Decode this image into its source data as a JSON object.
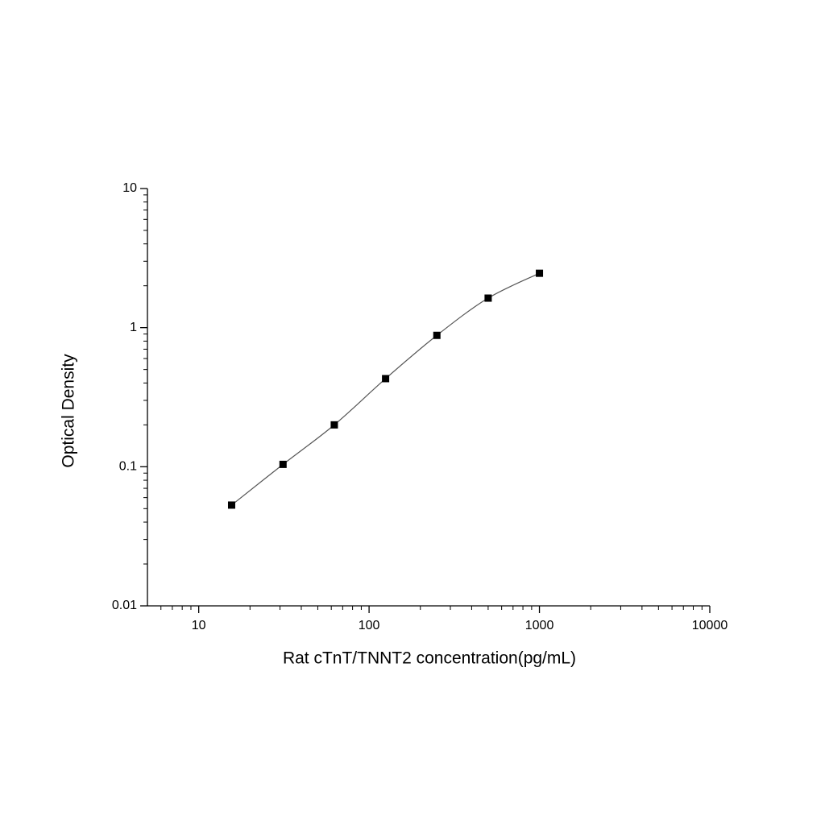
{
  "chart_data": {
    "type": "scatter",
    "x_label": "Rat cTnT/TNNT2 concentration(pg/mL)",
    "y_label": "Optical Density",
    "x": [
      15.6,
      31.25,
      62.5,
      125,
      250,
      500,
      1000
    ],
    "values": [
      0.053,
      0.104,
      0.2,
      0.43,
      0.88,
      1.63,
      2.46
    ],
    "color": "#000000",
    "curve": true,
    "curve_color": "#555555",
    "x_log": true,
    "y_log": true,
    "xlim": [
      5,
      10000
    ],
    "xticks": [
      10,
      100,
      1000,
      10000
    ],
    "xminorticks": [
      6,
      7,
      8,
      9,
      20,
      30,
      40,
      50,
      60,
      70,
      80,
      90,
      200,
      300,
      400,
      500,
      600,
      700,
      800,
      900,
      2000,
      3000,
      4000,
      5000,
      6000,
      7000,
      8000,
      9000
    ],
    "ylim": [
      0.01,
      10
    ],
    "yticks": [
      0.01,
      0.1,
      1,
      10
    ],
    "yminorticks": [
      0.02,
      0.03,
      0.04,
      0.05,
      0.06,
      0.07,
      0.08,
      0.09,
      0.2,
      0.3,
      0.4,
      0.5,
      0.6,
      0.7,
      0.8,
      0.9,
      2,
      3,
      4,
      5,
      6,
      7,
      8,
      9
    ]
  }
}
